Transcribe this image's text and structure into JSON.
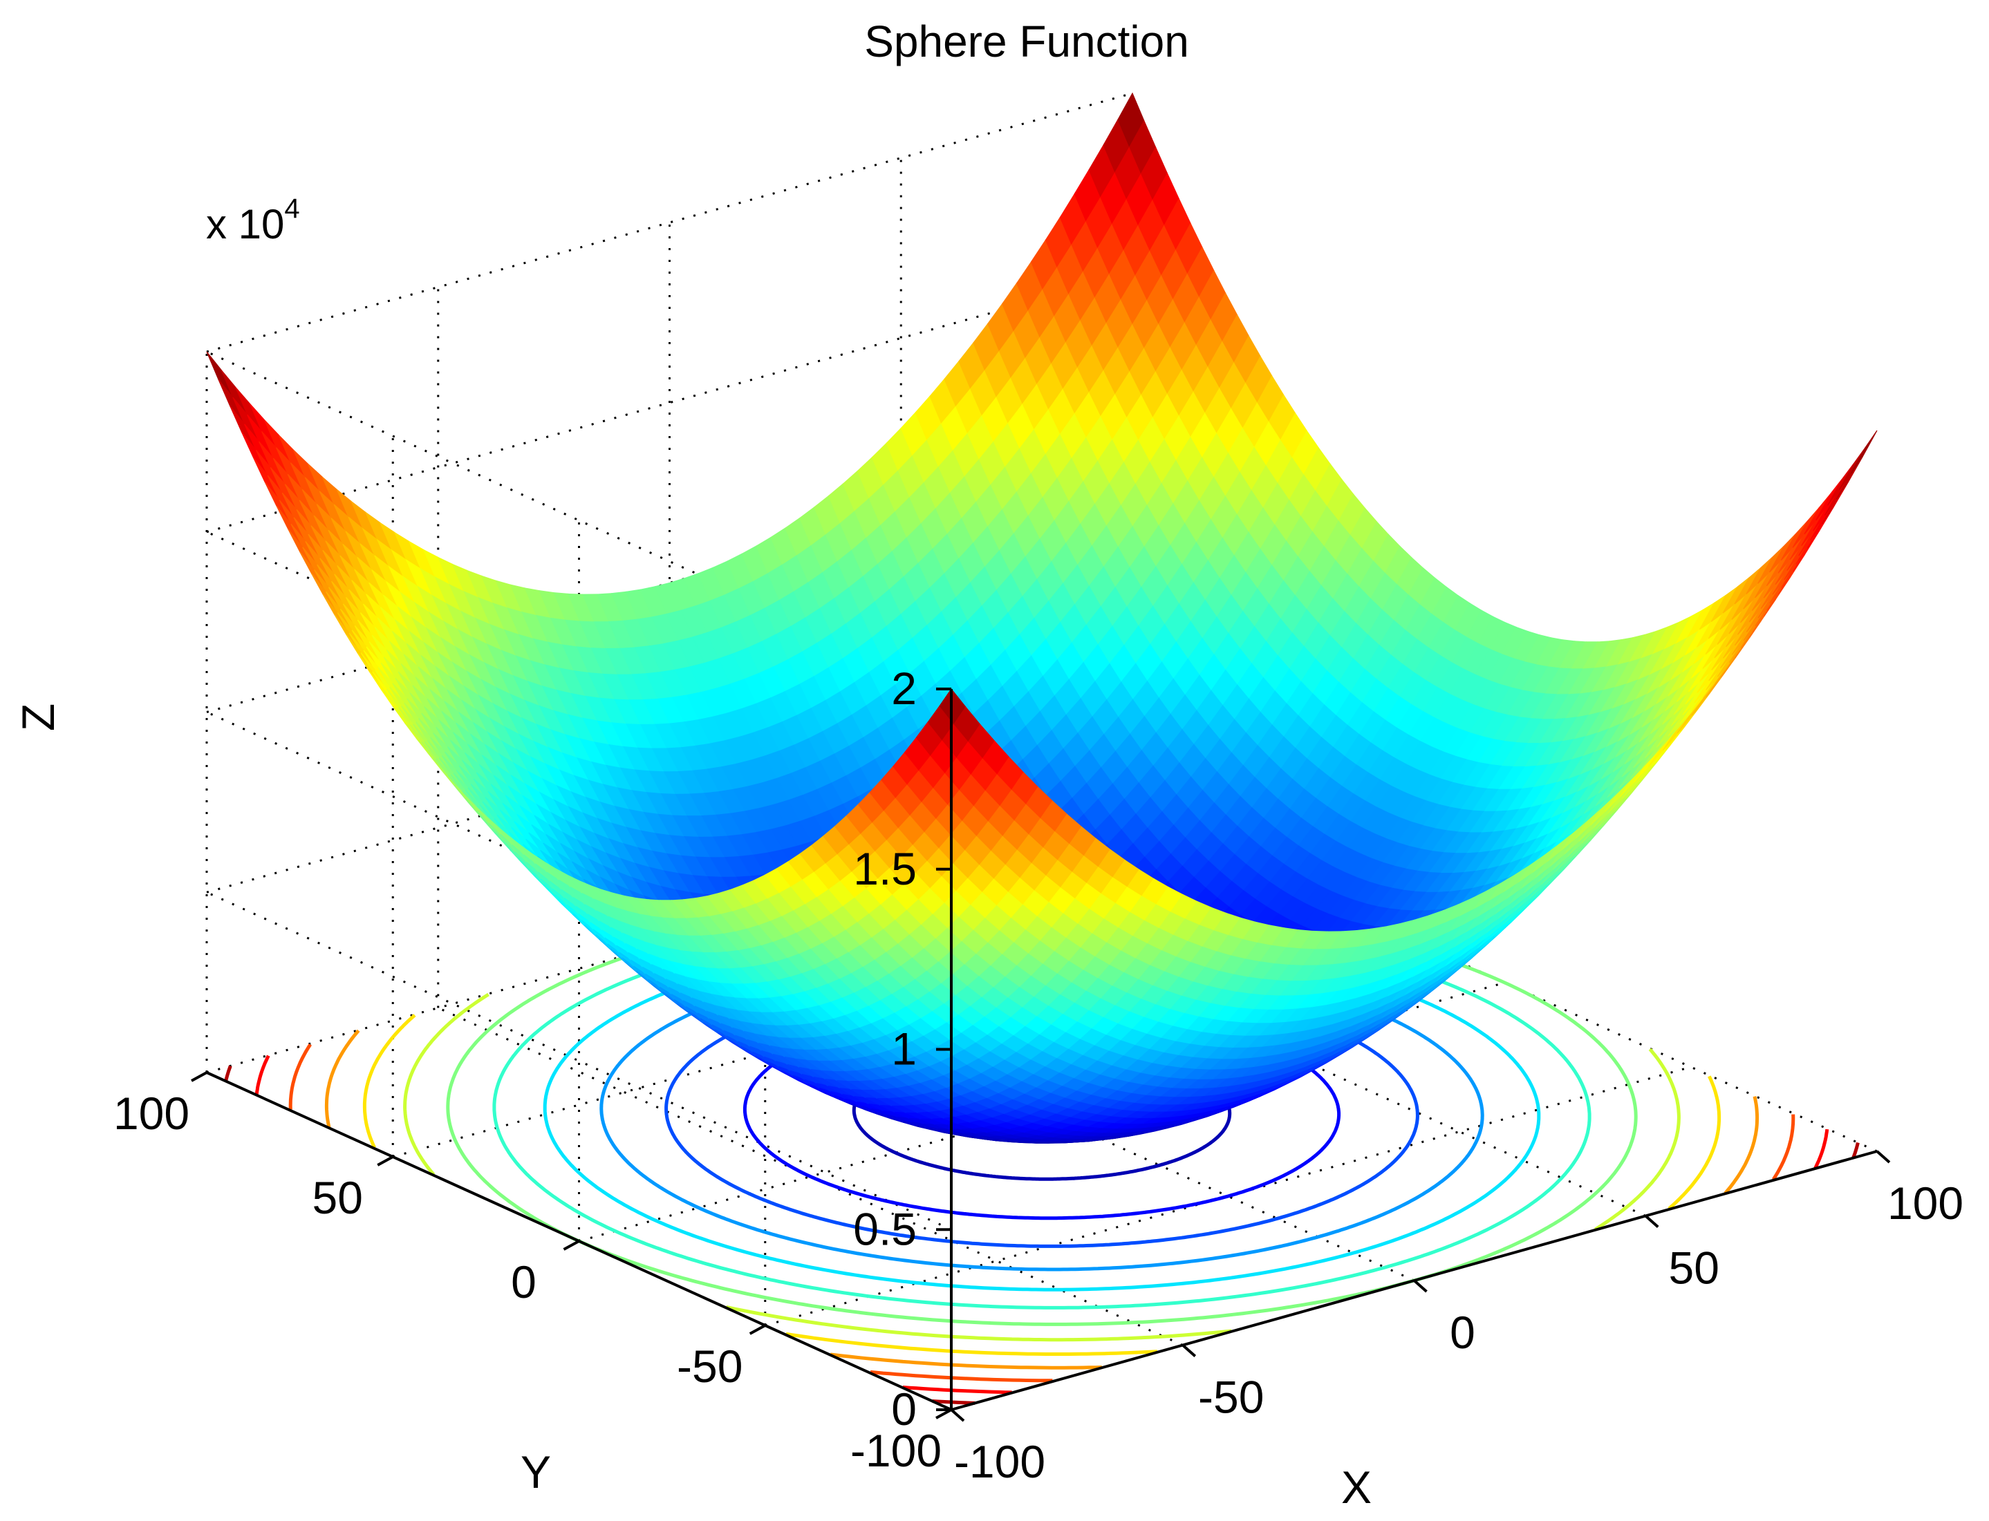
{
  "chart_data": {
    "type": "surface",
    "title": "Sphere Function",
    "function": "z = x^2 + y^2",
    "xlabel": "X",
    "ylabel": "Y",
    "zlabel": "Z",
    "z_scale_label": "x 10",
    "z_scale_exponent": "4",
    "xlim": [
      -100,
      100
    ],
    "ylim": [
      -100,
      100
    ],
    "zlim": [
      0,
      20000
    ],
    "x_ticks": [
      {
        "value": -100,
        "label": "-100"
      },
      {
        "value": -50,
        "label": "-50"
      },
      {
        "value": 0,
        "label": "0"
      },
      {
        "value": 50,
        "label": "50"
      },
      {
        "value": 100,
        "label": "100"
      }
    ],
    "y_ticks": [
      {
        "value": -100,
        "label": "-100"
      },
      {
        "value": -50,
        "label": "-50"
      },
      {
        "value": 0,
        "label": "0"
      },
      {
        "value": 50,
        "label": "50"
      },
      {
        "value": 100,
        "label": "100"
      }
    ],
    "z_ticks": [
      {
        "value": 0,
        "label": "0"
      },
      {
        "value": 5000,
        "label": "0.5"
      },
      {
        "value": 10000,
        "label": "1"
      },
      {
        "value": 15000,
        "label": "1.5"
      },
      {
        "value": 20000,
        "label": "2"
      }
    ],
    "contour_levels": [
      1000,
      2500,
      4000,
      5500,
      7000,
      8500,
      10000,
      11500,
      13000,
      14500,
      16000,
      17500,
      19000
    ],
    "grid": true,
    "colormap": "jet",
    "colors": {
      "low": "#00008f",
      "mid": "#00ffff",
      "high": "#800000"
    }
  }
}
